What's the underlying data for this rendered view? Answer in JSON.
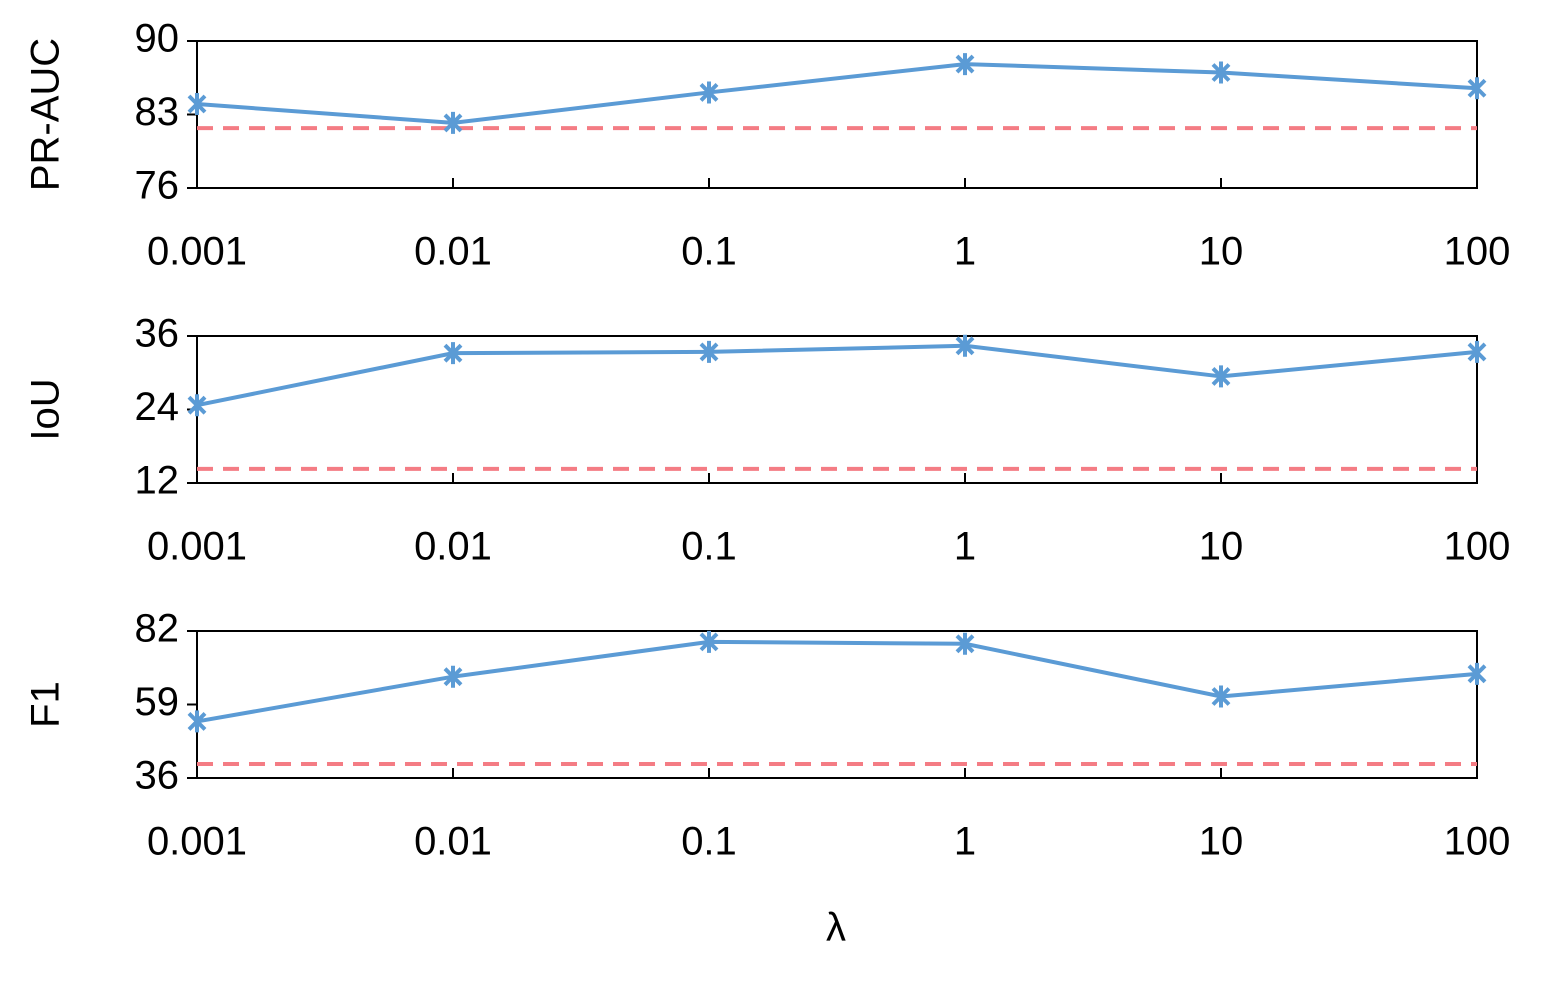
{
  "chart_data": [
    {
      "type": "line",
      "ylabel": "PR-AUC",
      "categories": [
        "0.001",
        "0.01",
        "0.1",
        "1",
        "10",
        "100"
      ],
      "series": [
        {
          "color": "#5b9bd5",
          "values": [
            84.0,
            82.2,
            85.1,
            87.8,
            87.0,
            85.5
          ]
        }
      ],
      "reference_line": {
        "value": 81.7,
        "color": "#f47c84"
      },
      "ylim": [
        76,
        90
      ],
      "yticks": [
        76,
        83,
        90
      ]
    },
    {
      "type": "line",
      "ylabel": "IoU",
      "categories": [
        "0.001",
        "0.01",
        "0.1",
        "1",
        "10",
        "100"
      ],
      "series": [
        {
          "color": "#5b9bd5",
          "values": [
            24.7,
            33.2,
            33.4,
            34.4,
            29.4,
            33.4
          ]
        }
      ],
      "reference_line": {
        "value": 14.3,
        "color": "#f47c84"
      },
      "ylim": [
        12,
        36
      ],
      "yticks": [
        12,
        24,
        36
      ]
    },
    {
      "type": "line",
      "ylabel": "F1",
      "xlabel": "λ",
      "categories": [
        "0.001",
        "0.01",
        "0.1",
        "1",
        "10",
        "100"
      ],
      "series": [
        {
          "color": "#5b9bd5",
          "values": [
            53.7,
            67.7,
            78.6,
            78.0,
            61.5,
            68.6
          ]
        }
      ],
      "reference_line": {
        "value": 40.4,
        "color": "#f47c84"
      },
      "ylim": [
        36,
        82
      ],
      "yticks": [
        36,
        59,
        82
      ]
    }
  ]
}
